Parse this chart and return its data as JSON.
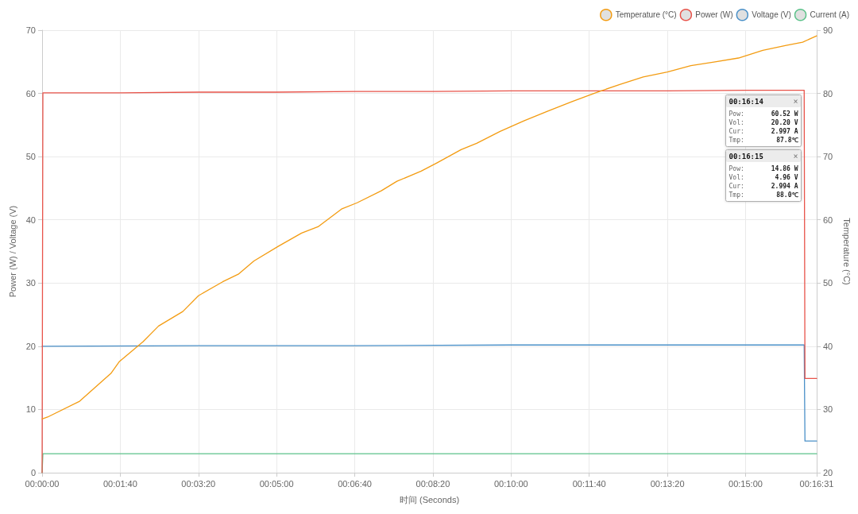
{
  "chart_data": {
    "type": "line",
    "xlabel": "时间 (Seconds)",
    "ylabel": "Power (W) / Voltage (V)",
    "y2label": "Temperature (°C)",
    "xlim": [
      0,
      991
    ],
    "xticks": [
      {
        "value": 0,
        "label": "00:00:00"
      },
      {
        "value": 100,
        "label": "00:01:40"
      },
      {
        "value": 200,
        "label": "00:03:20"
      },
      {
        "value": 300,
        "label": "00:05:00"
      },
      {
        "value": 400,
        "label": "00:06:40"
      },
      {
        "value": 500,
        "label": "00:08:20"
      },
      {
        "value": 600,
        "label": "00:10:00"
      },
      {
        "value": 700,
        "label": "00:11:40"
      },
      {
        "value": 800,
        "label": "00:13:20"
      },
      {
        "value": 900,
        "label": "00:15:00"
      },
      {
        "value": 991,
        "label": "00:16:31"
      }
    ],
    "ylim": [
      0,
      70
    ],
    "yticks": [
      0,
      10,
      20,
      30,
      40,
      50,
      60,
      70
    ],
    "y2lim": [
      20,
      90
    ],
    "y2ticks": [
      20,
      30,
      40,
      50,
      60,
      70,
      80,
      90
    ],
    "grid": true,
    "legend": "top right",
    "marker": "none",
    "line_style": "solid",
    "series": [
      {
        "name": "Temperature (°C)",
        "color": "#f39c12",
        "axis": "y2",
        "x": [
          0,
          7,
          48,
          88,
          99,
          129,
          149,
          180,
          200,
          231,
          251,
          271,
          302,
          332,
          353,
          383,
          403,
          434,
          454,
          485,
          505,
          536,
          556,
          586,
          617,
          647,
          678,
          708,
          739,
          769,
          800,
          830,
          861,
          891,
          922,
          952,
          973,
          991
        ],
        "values": [
          28.5,
          28.8,
          31.3,
          35.7,
          37.6,
          40.7,
          43.2,
          45.5,
          48,
          50.2,
          51.4,
          53.5,
          55.8,
          57.9,
          58.9,
          61.7,
          62.7,
          64.6,
          66.1,
          67.7,
          69,
          71.1,
          72.1,
          74,
          75.7,
          77.2,
          78.7,
          80.1,
          81.4,
          82.6,
          83.4,
          84.4,
          85,
          85.6,
          86.8,
          87.6,
          88.1,
          89.1
        ]
      },
      {
        "name": "Power (W)",
        "color": "#e8534a",
        "x": [
          0,
          1,
          100,
          200,
          300,
          400,
          500,
          600,
          700,
          800,
          900,
          975,
          976,
          991
        ],
        "values": [
          0,
          60.1,
          60.1,
          60.2,
          60.2,
          60.3,
          60.3,
          60.4,
          60.4,
          60.4,
          60.5,
          60.5,
          14.9,
          14.9
        ]
      },
      {
        "name": "Voltage (V)",
        "color": "#4a90c8",
        "x": [
          0,
          1,
          200,
          400,
          600,
          800,
          975,
          976,
          991
        ],
        "values": [
          20,
          20,
          20.1,
          20.1,
          20.2,
          20.2,
          20.2,
          5,
          5
        ]
      },
      {
        "name": "Current (A)",
        "color": "#5cc28a",
        "x": [
          0,
          1,
          500,
          975,
          976,
          991
        ],
        "values": [
          0,
          3,
          3,
          3,
          3,
          3
        ]
      }
    ],
    "annotations": [
      "00:16:14\t×\nPow:\t60.52 W\nVol:\t20.20 V\nCur:\t2.997 A\nTmp:\t87.8℃",
      "00:16:15\t×\nPow:\t14.86 W\nVol:\t4.96 V\nCur:\t2.994 A\nTmp:\t88.0℃"
    ]
  }
}
